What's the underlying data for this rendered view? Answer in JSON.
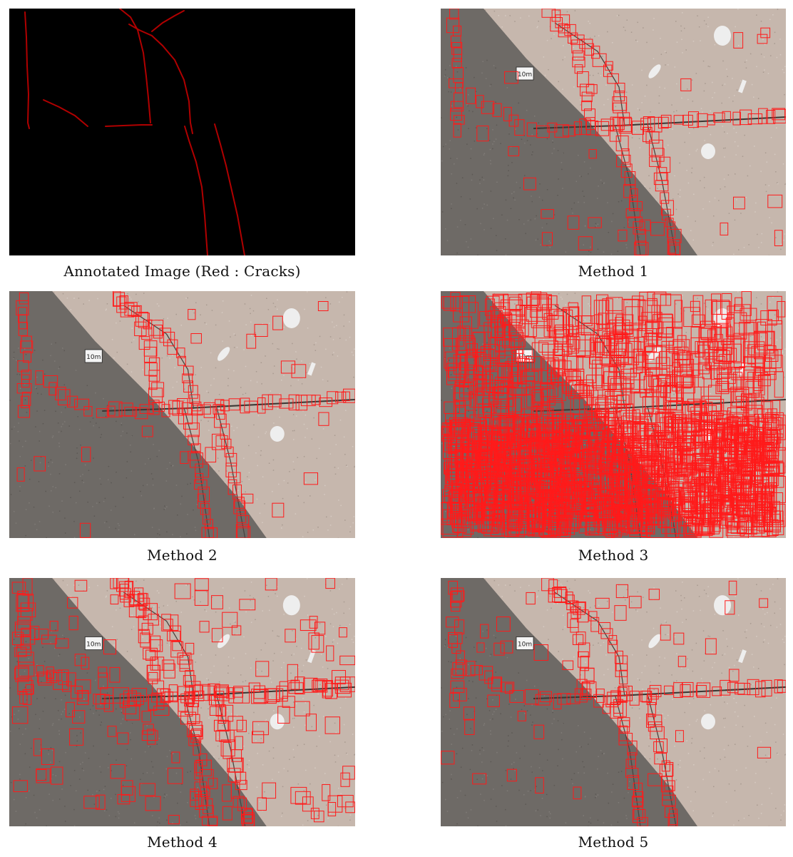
{
  "figure": {
    "panels": [
      {
        "id": "annotated",
        "caption": "Annotated Image (Red : Cracks)"
      },
      {
        "id": "method1",
        "caption": "Method 1",
        "scale_label": "10m"
      },
      {
        "id": "method2",
        "caption": "Method 2",
        "scale_label": "10m"
      },
      {
        "id": "method3",
        "caption": "Method 3",
        "scale_label": "10m"
      },
      {
        "id": "method4",
        "caption": "Method 4",
        "scale_label": "10m"
      },
      {
        "id": "method5",
        "caption": "Method 5",
        "scale_label": "10m"
      }
    ]
  },
  "colors": {
    "crack_annotation": "#b00000",
    "detection_box": "#ff1a1a",
    "dark_asphalt": "#6e6a66",
    "light_concrete": "#c6b7ad",
    "annotation_background": "#000000"
  }
}
